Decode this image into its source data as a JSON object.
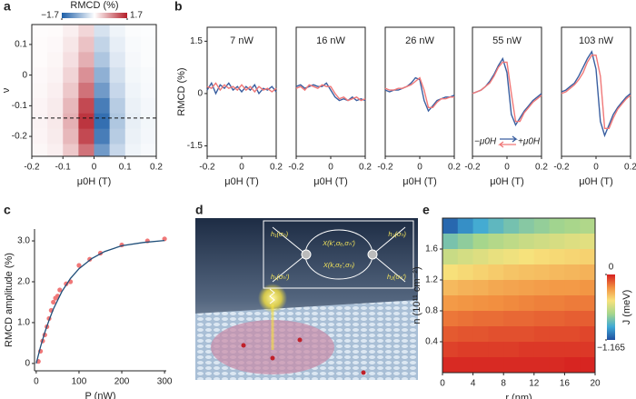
{
  "panel_labels": [
    "a",
    "b",
    "c",
    "d",
    "e"
  ],
  "diagram": {
    "labels": [
      "h₁(σₕ)",
      "h₂(σₕ)",
      "X(k′,σₑ,σₕ′)",
      "X(k,σₑ′,σₕ)",
      "h₁(σₕ′)",
      "h₂(σₕ′)"
    ]
  },
  "chart_data": [
    {
      "type": "heatmap",
      "x_label": "μ0H (T)",
      "y_label": "ν",
      "colorbar_label": "RMCD (%)",
      "colorbar_orientation": "horizontal",
      "colormap": [
        "#1d5fa8",
        "#ffffff",
        "#b51f2a"
      ],
      "zlim": [
        -1.7,
        1.7
      ],
      "colorbar_ticks": [
        {
          "value": -1.7,
          "label": "−1.7"
        },
        1.7
      ],
      "xlim": [
        -0.2,
        0.2
      ],
      "xticks": [
        -0.2,
        -0.1,
        0,
        0.1,
        0.2
      ],
      "ylim": [
        -0.265,
        0.165
      ],
      "yticks": [
        -0.2,
        -0.1,
        0,
        0.1
      ],
      "hline": -0.14,
      "x": [
        -0.175,
        -0.125,
        -0.075,
        -0.025,
        0.025,
        0.075,
        0.125,
        0.175
      ],
      "y": [
        0.15,
        0.1,
        0.05,
        0,
        -0.05,
        -0.1,
        -0.15,
        -0.2,
        -0.25
      ],
      "z": [
        [
          0.02,
          0.03,
          0.12,
          0.31,
          -0.31,
          -0.12,
          -0.03,
          -0.02
        ],
        [
          0.03,
          0.05,
          0.18,
          0.46,
          -0.46,
          -0.18,
          -0.05,
          -0.03
        ],
        [
          0.03,
          0.07,
          0.24,
          0.61,
          -0.61,
          -0.24,
          -0.07,
          -0.03
        ],
        [
          0.05,
          0.09,
          0.33,
          0.84,
          -0.84,
          -0.33,
          -0.09,
          -0.05
        ],
        [
          0.06,
          0.12,
          0.42,
          1.07,
          -1.07,
          -0.42,
          -0.12,
          -0.06
        ],
        [
          0.08,
          0.15,
          0.54,
          1.38,
          -1.38,
          -0.54,
          -0.15,
          -0.08
        ],
        [
          0.09,
          0.17,
          0.6,
          1.53,
          -1.53,
          -0.6,
          -0.17,
          -0.09
        ],
        [
          0.08,
          0.15,
          0.54,
          1.38,
          -1.38,
          -0.54,
          -0.15,
          -0.08
        ],
        [
          0.06,
          0.12,
          0.42,
          1.07,
          -1.07,
          -0.42,
          -0.12,
          -0.06
        ]
      ]
    },
    {
      "type": "line",
      "title": "7 nW",
      "x_label": "μ0H (T)",
      "y_label": "RMCD (%)",
      "xlim": [
        -0.2,
        0.2
      ],
      "xticks": [
        -0.2,
        0,
        0.2
      ],
      "ylim": [
        -1.8,
        1.9
      ],
      "yticks": [
        -1.5,
        0,
        1.5
      ],
      "x": [
        -0.2,
        -0.175,
        -0.15,
        -0.125,
        -0.1,
        -0.075,
        -0.05,
        -0.025,
        0,
        0.025,
        0.05,
        0.075,
        0.1,
        0.125,
        0.15,
        0.175,
        0.2
      ],
      "series": [
        {
          "color": "#3a5fa0",
          "values": [
            0.1,
            0.3,
            0.0,
            0.25,
            0.15,
            0.3,
            0.1,
            0.2,
            0.05,
            0.2,
            0.1,
            0.25,
            0.0,
            0.15,
            0.1,
            0.2,
            0.05
          ]
        },
        {
          "color": "#f07878",
          "values": [
            0.2,
            0.15,
            0.3,
            0.1,
            0.25,
            0.15,
            0.2,
            0.1,
            0.25,
            0.1,
            0.2,
            0.05,
            0.2,
            0.1,
            0.15,
            0.05,
            0.15
          ]
        }
      ]
    },
    {
      "type": "line",
      "title": "16 nW",
      "x_label": "μ0H (T)",
      "xlim": [
        -0.2,
        0.2
      ],
      "xticks": [
        -0.2,
        0,
        0.2
      ],
      "ylim": [
        -1.8,
        1.9
      ],
      "x": [
        -0.2,
        -0.175,
        -0.15,
        -0.125,
        -0.1,
        -0.075,
        -0.05,
        -0.025,
        0,
        0.025,
        0.05,
        0.075,
        0.1,
        0.125,
        0.15,
        0.175,
        0.2
      ],
      "series": [
        {
          "color": "#3a5fa0",
          "values": [
            0.2,
            0.25,
            0.15,
            0.2,
            0.25,
            0.2,
            0.2,
            0.3,
            0.1,
            -0.1,
            -0.2,
            -0.15,
            -0.2,
            -0.1,
            -0.2,
            -0.15,
            -0.2
          ]
        },
        {
          "color": "#f07878",
          "values": [
            0.15,
            0.2,
            0.1,
            0.25,
            0.2,
            0.15,
            0.25,
            0.2,
            0.2,
            0.0,
            -0.15,
            -0.1,
            -0.2,
            -0.15,
            -0.1,
            -0.2,
            -0.15
          ]
        }
      ]
    },
    {
      "type": "line",
      "title": "26 nW",
      "x_label": "μ0H (T)",
      "xlim": [
        -0.2,
        0.2
      ],
      "xticks": [
        -0.2,
        0,
        0.2
      ],
      "ylim": [
        -1.8,
        1.9
      ],
      "x": [
        -0.2,
        -0.175,
        -0.15,
        -0.125,
        -0.1,
        -0.075,
        -0.05,
        -0.025,
        0,
        0.025,
        0.05,
        0.075,
        0.1,
        0.125,
        0.15,
        0.175,
        0.2
      ],
      "series": [
        {
          "color": "#3a5fa0",
          "values": [
            0.1,
            0.05,
            0.1,
            0.1,
            0.15,
            0.2,
            0.3,
            0.45,
            0.4,
            -0.2,
            -0.5,
            -0.35,
            -0.2,
            -0.15,
            -0.1,
            -0.1,
            -0.05
          ]
        },
        {
          "color": "#f07878",
          "values": [
            0.15,
            0.1,
            0.1,
            0.15,
            0.15,
            0.2,
            0.25,
            0.35,
            0.45,
            0.1,
            -0.4,
            -0.4,
            -0.25,
            -0.15,
            -0.15,
            -0.1,
            -0.1
          ]
        }
      ]
    },
    {
      "type": "line",
      "title": "55 nW",
      "x_label": "μ0H (T)",
      "xlim": [
        -0.2,
        0.2
      ],
      "xticks": [
        -0.2,
        0,
        0.2
      ],
      "ylim": [
        -1.8,
        1.9
      ],
      "legend": true,
      "x": [
        -0.2,
        -0.175,
        -0.15,
        -0.125,
        -0.1,
        -0.075,
        -0.05,
        -0.025,
        0,
        0.025,
        0.05,
        0.075,
        0.1,
        0.125,
        0.15,
        0.175,
        0.2
      ],
      "series": [
        {
          "name": "+μ0H",
          "color": "#3a5fa0",
          "values": [
            0.0,
            0.05,
            0.1,
            0.2,
            0.35,
            0.55,
            0.8,
            1.0,
            0.6,
            -0.6,
            -0.9,
            -0.7,
            -0.5,
            -0.35,
            -0.2,
            -0.1,
            0.0
          ]
        },
        {
          "name": "−μ0H",
          "color": "#f07878",
          "values": [
            0.0,
            0.05,
            0.1,
            0.2,
            0.3,
            0.5,
            0.75,
            0.9,
            0.9,
            0.0,
            -0.8,
            -0.8,
            -0.55,
            -0.4,
            -0.25,
            -0.15,
            -0.05
          ]
        }
      ]
    },
    {
      "type": "line",
      "title": "103 nW",
      "x_label": "μ0H (T)",
      "xlim": [
        -0.2,
        0.2
      ],
      "xticks": [
        -0.2,
        0,
        0.2
      ],
      "ylim": [
        -1.8,
        1.9
      ],
      "x": [
        -0.2,
        -0.175,
        -0.15,
        -0.125,
        -0.1,
        -0.075,
        -0.05,
        -0.025,
        0,
        0.025,
        0.05,
        0.075,
        0.1,
        0.125,
        0.15,
        0.175,
        0.2
      ],
      "series": [
        {
          "color": "#3a5fa0",
          "values": [
            0.05,
            0.1,
            0.2,
            0.3,
            0.5,
            0.75,
            1.0,
            1.2,
            0.7,
            -0.8,
            -1.2,
            -0.9,
            -0.6,
            -0.4,
            -0.25,
            -0.1,
            0.0
          ]
        },
        {
          "color": "#f07878",
          "values": [
            0.0,
            0.05,
            0.15,
            0.25,
            0.4,
            0.6,
            0.9,
            1.1,
            1.1,
            0.5,
            -1.0,
            -1.0,
            -0.7,
            -0.45,
            -0.3,
            -0.15,
            -0.05
          ]
        }
      ]
    },
    {
      "type": "scatter",
      "x_label": "P (nW)",
      "y_label": "RMCD amplitude (%)",
      "xlim": [
        -4,
        304
      ],
      "xticks": [
        0,
        100,
        200,
        300
      ],
      "ylim": [
        -0.18,
        3.29
      ],
      "yticks": [
        0,
        {
          "value": 1,
          "label": "1.0"
        },
        {
          "value": 2,
          "label": "2.0"
        },
        {
          "value": 3,
          "label": "3.0"
        }
      ],
      "series": [
        {
          "color": "#f07878",
          "x": [
            5,
            10,
            15,
            20,
            25,
            30,
            35,
            40,
            45,
            50,
            55,
            70,
            80,
            100,
            125,
            150,
            200,
            260,
            300
          ],
          "values": [
            0.05,
            0.3,
            0.55,
            0.7,
            0.9,
            1.1,
            1.3,
            1.5,
            1.6,
            1.65,
            1.8,
            1.95,
            2.0,
            2.4,
            2.55,
            2.7,
            2.9,
            3.0,
            3.05
          ]
        },
        {
          "color": "#1f4e79",
          "line": true,
          "x": [
            0,
            10,
            20,
            30,
            40,
            60,
            80,
            100,
            130,
            160,
            200,
            250,
            300
          ],
          "values": [
            0,
            0.41,
            0.76,
            1.06,
            1.33,
            1.76,
            2.08,
            2.32,
            2.57,
            2.74,
            2.88,
            2.96,
            3.01
          ]
        }
      ]
    },
    {
      "type": "heatmap",
      "x_label": "r (nm)",
      "y_label": "n (10¹¹ cm⁻²)",
      "colorbar_label": "J (meV)",
      "colorbar_orientation": "vertical",
      "colormap": [
        "#1f4fa0",
        "#3fa9d6",
        "#a6d68c",
        "#f7e27c",
        "#f29040",
        "#d62020"
      ],
      "zlim": [
        -1.165,
        0
      ],
      "colorbar_ticks": [
        {
          "value": -1.165,
          "label": "−1.165"
        },
        0
      ],
      "xlim": [
        0,
        20
      ],
      "xticks": [
        0,
        4,
        8,
        12,
        16,
        20
      ],
      "ylim": [
        0,
        2.0
      ],
      "yticks": [
        0.4,
        0.8,
        1.2,
        1.6
      ],
      "x": [
        1,
        3,
        5,
        7,
        9,
        11,
        13,
        15,
        17,
        19
      ],
      "y": [
        1.9,
        1.7,
        1.5,
        1.3,
        1.1,
        0.9,
        0.7,
        0.5,
        0.3,
        0.1
      ],
      "z": [
        [
          -1.1,
          -1.0,
          -0.92,
          -0.86,
          -0.81,
          -0.77,
          -0.74,
          -0.71,
          -0.69,
          -0.67
        ],
        [
          -0.8,
          -0.75,
          -0.7,
          -0.66,
          -0.63,
          -0.6,
          -0.58,
          -0.56,
          -0.54,
          -0.53
        ],
        [
          -0.6,
          -0.57,
          -0.54,
          -0.51,
          -0.49,
          -0.47,
          -0.45,
          -0.44,
          -0.43,
          -0.42
        ],
        [
          -0.46,
          -0.44,
          -0.42,
          -0.4,
          -0.38,
          -0.37,
          -0.36,
          -0.35,
          -0.34,
          -0.33
        ],
        [
          -0.35,
          -0.33,
          -0.32,
          -0.3,
          -0.29,
          -0.28,
          -0.27,
          -0.26,
          -0.26,
          -0.25
        ],
        [
          -0.26,
          -0.25,
          -0.24,
          -0.23,
          -0.22,
          -0.21,
          -0.2,
          -0.2,
          -0.19,
          -0.19
        ],
        [
          -0.18,
          -0.17,
          -0.16,
          -0.16,
          -0.15,
          -0.15,
          -0.14,
          -0.14,
          -0.13,
          -0.13
        ],
        [
          -0.12,
          -0.11,
          -0.11,
          -0.1,
          -0.1,
          -0.1,
          -0.09,
          -0.09,
          -0.09,
          -0.08
        ],
        [
          -0.07,
          -0.06,
          -0.06,
          -0.06,
          -0.06,
          -0.05,
          -0.05,
          -0.05,
          -0.05,
          -0.05
        ],
        [
          -0.02,
          -0.02,
          -0.02,
          -0.02,
          -0.02,
          -0.02,
          -0.02,
          -0.02,
          -0.01,
          -0.01
        ]
      ]
    }
  ]
}
